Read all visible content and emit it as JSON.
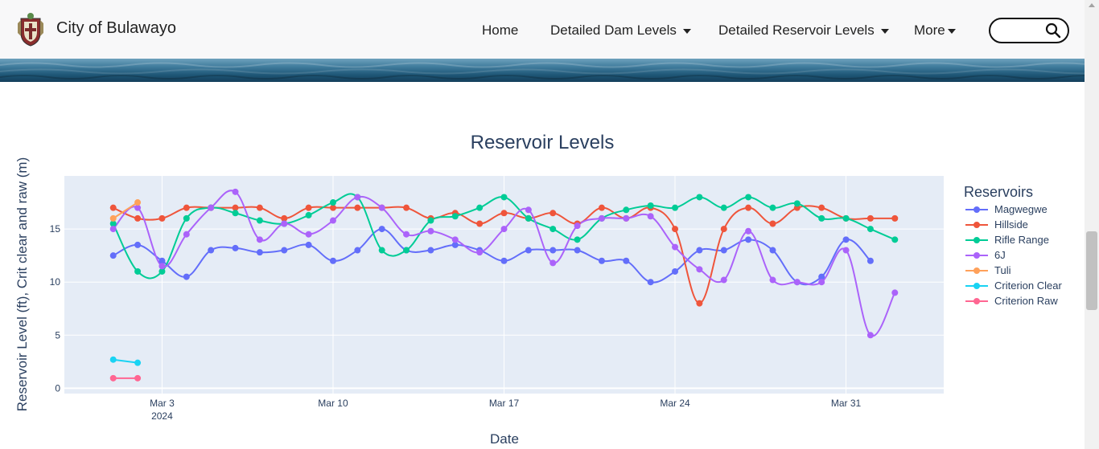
{
  "navbar": {
    "brand": "City of Bulawayo",
    "items": [
      {
        "label": "Home",
        "dropdown": false
      },
      {
        "label": "Detailed Dam Levels",
        "dropdown": true
      },
      {
        "label": "Detailed Reservoir Levels",
        "dropdown": true
      },
      {
        "label": "More",
        "dropdown": true
      }
    ],
    "search_placeholder": ""
  },
  "chart_data": {
    "type": "line",
    "title": "Reservoir Levels",
    "xlabel": "Date",
    "ylabel": "Reservoir Level (ft), Crit clear and raw (m)",
    "legend_title": "Reservoirs",
    "legend_position": "right",
    "grid": true,
    "ylim": [
      -0.5,
      20
    ],
    "xlim": [
      "2024-02-28",
      "2024-04-04"
    ],
    "yticks": [
      0,
      5,
      10,
      15
    ],
    "xticks": [
      {
        "date": "2024-03-03",
        "label": "Mar 3",
        "sub": "2024"
      },
      {
        "date": "2024-03-10",
        "label": "Mar 10",
        "sub": ""
      },
      {
        "date": "2024-03-17",
        "label": "Mar 17",
        "sub": ""
      },
      {
        "date": "2024-03-24",
        "label": "Mar 24",
        "sub": ""
      },
      {
        "date": "2024-03-31",
        "label": "Mar 31",
        "sub": ""
      }
    ],
    "series": [
      {
        "name": "Magwegwe",
        "color": "#636efa",
        "x": [
          "2024-03-01",
          "2024-03-02",
          "2024-03-03",
          "2024-03-04",
          "2024-03-05",
          "2024-03-06",
          "2024-03-07",
          "2024-03-08",
          "2024-03-09",
          "2024-03-10",
          "2024-03-11",
          "2024-03-12",
          "2024-03-13",
          "2024-03-14",
          "2024-03-15",
          "2024-03-16",
          "2024-03-17",
          "2024-03-18",
          "2024-03-19",
          "2024-03-20",
          "2024-03-21",
          "2024-03-22",
          "2024-03-23",
          "2024-03-24",
          "2024-03-25",
          "2024-03-26",
          "2024-03-27",
          "2024-03-28",
          "2024-03-29",
          "2024-03-30",
          "2024-03-31",
          "2024-04-01"
        ],
        "y": [
          12.5,
          13.5,
          12,
          10.5,
          13,
          13.2,
          12.8,
          13,
          13.5,
          12,
          13,
          15,
          13,
          13,
          13.5,
          13,
          12,
          13,
          13,
          13,
          12,
          12,
          10,
          11,
          13,
          13,
          14,
          13,
          10,
          10.5,
          14,
          12
        ]
      },
      {
        "name": "Hillside",
        "color": "#ef553b",
        "x": [
          "2024-03-01",
          "2024-03-02",
          "2024-03-03",
          "2024-03-04",
          "2024-03-05",
          "2024-03-06",
          "2024-03-07",
          "2024-03-08",
          "2024-03-09",
          "2024-03-10",
          "2024-03-11",
          "2024-03-12",
          "2024-03-13",
          "2024-03-14",
          "2024-03-15",
          "2024-03-16",
          "2024-03-17",
          "2024-03-18",
          "2024-03-19",
          "2024-03-20",
          "2024-03-21",
          "2024-03-22",
          "2024-03-23",
          "2024-03-24",
          "2024-03-25",
          "2024-03-26",
          "2024-03-27",
          "2024-03-28",
          "2024-03-29",
          "2024-03-30",
          "2024-03-31",
          "2024-04-01",
          "2024-04-02"
        ],
        "y": [
          17,
          16,
          16,
          17,
          17,
          17,
          17,
          16,
          17,
          17,
          17,
          17,
          17,
          16,
          16.5,
          15.5,
          16.5,
          16,
          16.5,
          15.5,
          17,
          16,
          17,
          15,
          8,
          15,
          17,
          15.5,
          17,
          17,
          16,
          16,
          16
        ]
      },
      {
        "name": "Rifle Range",
        "color": "#00cc96",
        "x": [
          "2024-03-01",
          "2024-03-02",
          "2024-03-03",
          "2024-03-04",
          "2024-03-05",
          "2024-03-06",
          "2024-03-07",
          "2024-03-08",
          "2024-03-09",
          "2024-03-10",
          "2024-03-11",
          "2024-03-12",
          "2024-03-13",
          "2024-03-14",
          "2024-03-15",
          "2024-03-16",
          "2024-03-17",
          "2024-03-18",
          "2024-03-19",
          "2024-03-20",
          "2024-03-21",
          "2024-03-22",
          "2024-03-23",
          "2024-03-24",
          "2024-03-25",
          "2024-03-26",
          "2024-03-27",
          "2024-03-28",
          "2024-03-29",
          "2024-03-30",
          "2024-03-31",
          "2024-04-01",
          "2024-04-02"
        ],
        "y": [
          15.5,
          11,
          11,
          16,
          17,
          16.5,
          15.8,
          15.5,
          16.3,
          17.5,
          18,
          13,
          13,
          15.8,
          16.2,
          17,
          18,
          16,
          15,
          14,
          16,
          16.8,
          17.2,
          17,
          18,
          17,
          18,
          17,
          17.4,
          16,
          16,
          15,
          14
        ]
      },
      {
        "name": "6J",
        "color": "#ab63fa",
        "x": [
          "2024-03-01",
          "2024-03-02",
          "2024-03-03",
          "2024-03-04",
          "2024-03-05",
          "2024-03-06",
          "2024-03-07",
          "2024-03-08",
          "2024-03-09",
          "2024-03-10",
          "2024-03-11",
          "2024-03-12",
          "2024-03-13",
          "2024-03-14",
          "2024-03-15",
          "2024-03-16",
          "2024-03-17",
          "2024-03-18",
          "2024-03-19",
          "2024-03-20",
          "2024-03-21",
          "2024-03-22",
          "2024-03-23",
          "2024-03-24",
          "2024-03-25",
          "2024-03-26",
          "2024-03-27",
          "2024-03-28",
          "2024-03-29",
          "2024-03-30",
          "2024-03-31",
          "2024-04-01",
          "2024-04-02"
        ],
        "y": [
          15,
          17,
          11.5,
          14.5,
          17,
          18.5,
          14,
          15.5,
          14.5,
          15.8,
          18,
          17,
          14.5,
          14.8,
          14,
          12.8,
          15,
          16.8,
          11.8,
          15.3,
          16,
          16,
          16.2,
          13.3,
          11.2,
          10.2,
          14.8,
          10.2,
          10,
          10,
          13,
          5,
          9
        ]
      },
      {
        "name": "Tuli",
        "color": "#ffa15a",
        "x": [
          "2024-03-01",
          "2024-03-02"
        ],
        "y": [
          16,
          17.5
        ]
      },
      {
        "name": "Criterion Clear",
        "color": "#19d3f3",
        "x": [
          "2024-03-01",
          "2024-03-02"
        ],
        "y": [
          2.7,
          2.4
        ]
      },
      {
        "name": "Criterion Raw",
        "color": "#ff6692",
        "x": [
          "2024-03-01",
          "2024-03-02"
        ],
        "y": [
          0.95,
          0.95
        ]
      }
    ]
  }
}
